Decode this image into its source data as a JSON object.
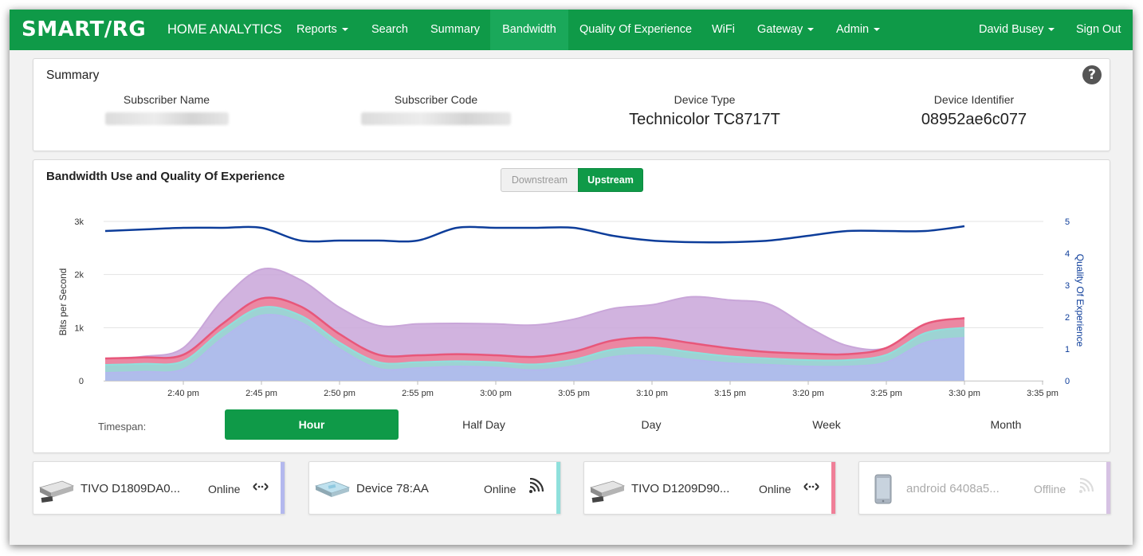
{
  "navbar": {
    "brand": "SMART/RG",
    "app_name": "HOME ANALYTICS",
    "items": [
      {
        "label": "Reports",
        "dropdown": true
      },
      {
        "label": "Search",
        "dropdown": false
      },
      {
        "label": "Summary",
        "dropdown": false
      },
      {
        "label": "Bandwidth",
        "dropdown": false,
        "active": true
      },
      {
        "label": "Quality Of Experience",
        "dropdown": false
      },
      {
        "label": "WiFi",
        "dropdown": false
      },
      {
        "label": "Gateway",
        "dropdown": true
      },
      {
        "label": "Admin",
        "dropdown": true
      }
    ],
    "user": "David Busey",
    "sign_out": "Sign Out"
  },
  "summary": {
    "title": "Summary",
    "help": "?",
    "subscriber_name_label": "Subscriber Name",
    "subscriber_code_label": "Subscriber Code",
    "device_type_label": "Device Type",
    "device_type": "Technicolor TC8717T",
    "device_identifier_label": "Device Identifier",
    "device_identifier": "08952ae6c077"
  },
  "bandwidth": {
    "title": "Bandwidth Use and Quality Of Experience",
    "toggle": {
      "downstream": "Downstream",
      "upstream": "Upstream",
      "selected": "Upstream"
    },
    "timespan_label": "Timespan:",
    "timespans": [
      "Hour",
      "Half Day",
      "Day",
      "Week",
      "Month"
    ],
    "timespan_selected": "Hour"
  },
  "chart_data": {
    "type": "area",
    "ylabel": "Bits per Second",
    "y2label": "Quality Of Experience",
    "ylim": [
      0,
      3000
    ],
    "y_ticks": [
      "0",
      "1k",
      "2k",
      "3k"
    ],
    "y2lim": [
      0,
      5
    ],
    "y2_ticks": [
      "0",
      "1",
      "2",
      "3",
      "4",
      "5"
    ],
    "x_ticks": [
      "2:40 pm",
      "2:45 pm",
      "2:50 pm",
      "2:55 pm",
      "3:00 pm",
      "3:05 pm",
      "3:10 pm",
      "3:15 pm",
      "3:20 pm",
      "3:25 pm",
      "3:30 pm",
      "3:35 pm"
    ],
    "x_minutes": [
      0,
      2.5,
      5,
      7.5,
      10,
      12.5,
      15,
      17.5,
      20,
      22.5,
      25,
      27.5,
      30,
      32.5,
      35,
      37.5,
      40,
      42.5,
      45,
      47.5,
      50,
      52.5,
      55
    ],
    "stack_series": [
      {
        "color": "#b3b8ee",
        "values": [
          150,
          170,
          220,
          800,
          1230,
          1100,
          600,
          230,
          240,
          270,
          250,
          200,
          280,
          450,
          480,
          400,
          330,
          300,
          270,
          270,
          350,
          720,
          810
        ]
      },
      {
        "color": "#8fe0dc",
        "values": [
          150,
          150,
          150,
          150,
          150,
          130,
          120,
          120,
          110,
          100,
          100,
          110,
          120,
          140,
          150,
          140,
          130,
          120,
          120,
          120,
          140,
          180,
          190
        ]
      },
      {
        "color": "#f07f98",
        "values": [
          120,
          120,
          120,
          120,
          170,
          170,
          160,
          140,
          130,
          130,
          130,
          140,
          150,
          170,
          180,
          170,
          150,
          120,
          120,
          110,
          130,
          170,
          180
        ]
      },
      {
        "color": "#c9a6d9",
        "values": [
          0,
          20,
          130,
          450,
          550,
          500,
          500,
          550,
          590,
          580,
          590,
          600,
          610,
          600,
          620,
          870,
          910,
          900,
          500,
          160,
          0,
          0,
          0
        ]
      }
    ],
    "qoe_series": {
      "color": "#0d3d9a",
      "values": [
        4.7,
        4.75,
        4.8,
        4.8,
        4.8,
        4.4,
        4.4,
        4.4,
        4.4,
        4.8,
        4.8,
        4.8,
        4.8,
        4.55,
        4.4,
        4.35,
        4.35,
        4.4,
        4.55,
        4.7,
        4.7,
        4.7,
        4.85
      ]
    },
    "grid": true
  },
  "devices": [
    {
      "name": "TIVO D1809DA0...",
      "status": "Online",
      "connection": "ethernet",
      "color": "#b3b8ee"
    },
    {
      "name": "Device 78:AA",
      "status": "Online",
      "connection": "wifi",
      "color": "#8fe0dc"
    },
    {
      "name": "TIVO D1209D90...",
      "status": "Online",
      "connection": "ethernet",
      "color": "#f07f98"
    },
    {
      "name": "android 6408a5...",
      "status": "Offline",
      "connection": "wifi",
      "color": "#d6c2e3"
    }
  ]
}
